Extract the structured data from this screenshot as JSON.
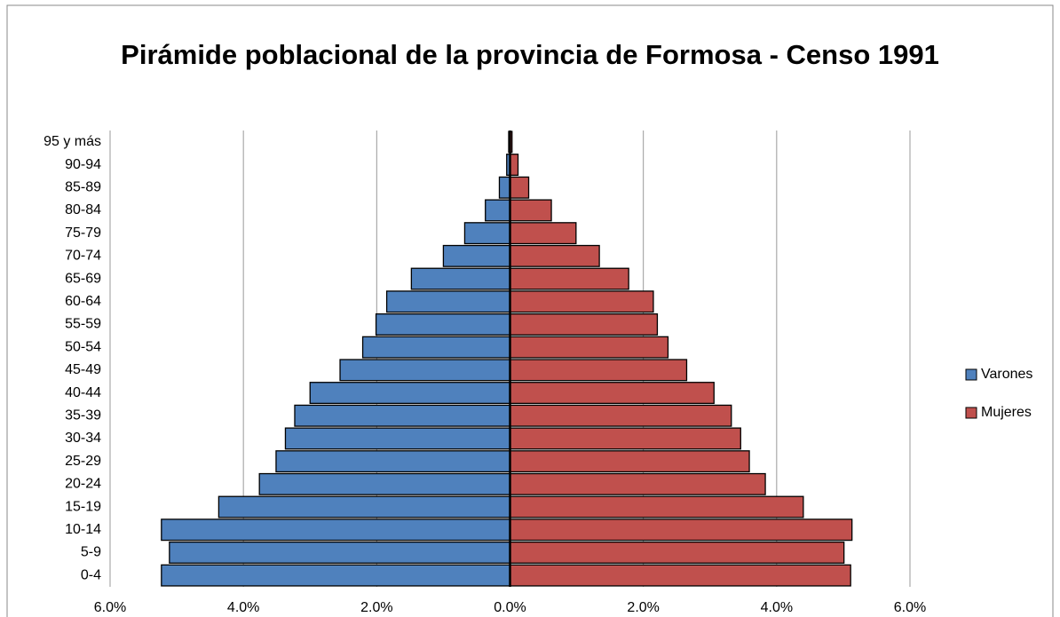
{
  "chart_data": {
    "type": "bar",
    "orientation": "horizontal",
    "title": "Pirámide poblacional de la provincia de Formosa - Censo 1991",
    "categories": [
      "0-4",
      "5-9",
      "10-14",
      "15-19",
      "20-24",
      "25-29",
      "30-34",
      "35-39",
      "40-44",
      "45-49",
      "50-54",
      "55-59",
      "60-64",
      "65-69",
      "70-74",
      "75-79",
      "80-84",
      "85-89",
      "90-94",
      "95 y más"
    ],
    "series": [
      {
        "name": "Varones",
        "color": "#4f81bd",
        "values": [
          -5.23,
          -5.11,
          -5.23,
          -4.37,
          -3.76,
          -3.51,
          -3.37,
          -3.23,
          -3.0,
          -2.55,
          -2.21,
          -2.01,
          -1.85,
          -1.48,
          -1.0,
          -0.68,
          -0.37,
          -0.16,
          -0.05,
          -0.02
        ]
      },
      {
        "name": "Mujeres",
        "color": "#c0504d",
        "values": [
          5.11,
          5.01,
          5.13,
          4.4,
          3.83,
          3.59,
          3.46,
          3.32,
          3.06,
          2.65,
          2.37,
          2.21,
          2.15,
          1.78,
          1.34,
          0.99,
          0.62,
          0.28,
          0.12,
          0.03
        ]
      }
    ],
    "xlim": [
      -6,
      6
    ],
    "xticks": [
      {
        "value": -6,
        "label": "6.0%"
      },
      {
        "value": -4,
        "label": "4.0%"
      },
      {
        "value": -2,
        "label": "2.0%"
      },
      {
        "value": 0,
        "label": "0.0%"
      },
      {
        "value": 2,
        "label": "2.0%"
      },
      {
        "value": 4,
        "label": "4.0%"
      },
      {
        "value": 6,
        "label": "6.0%"
      }
    ],
    "grid": true,
    "legend": "right"
  }
}
